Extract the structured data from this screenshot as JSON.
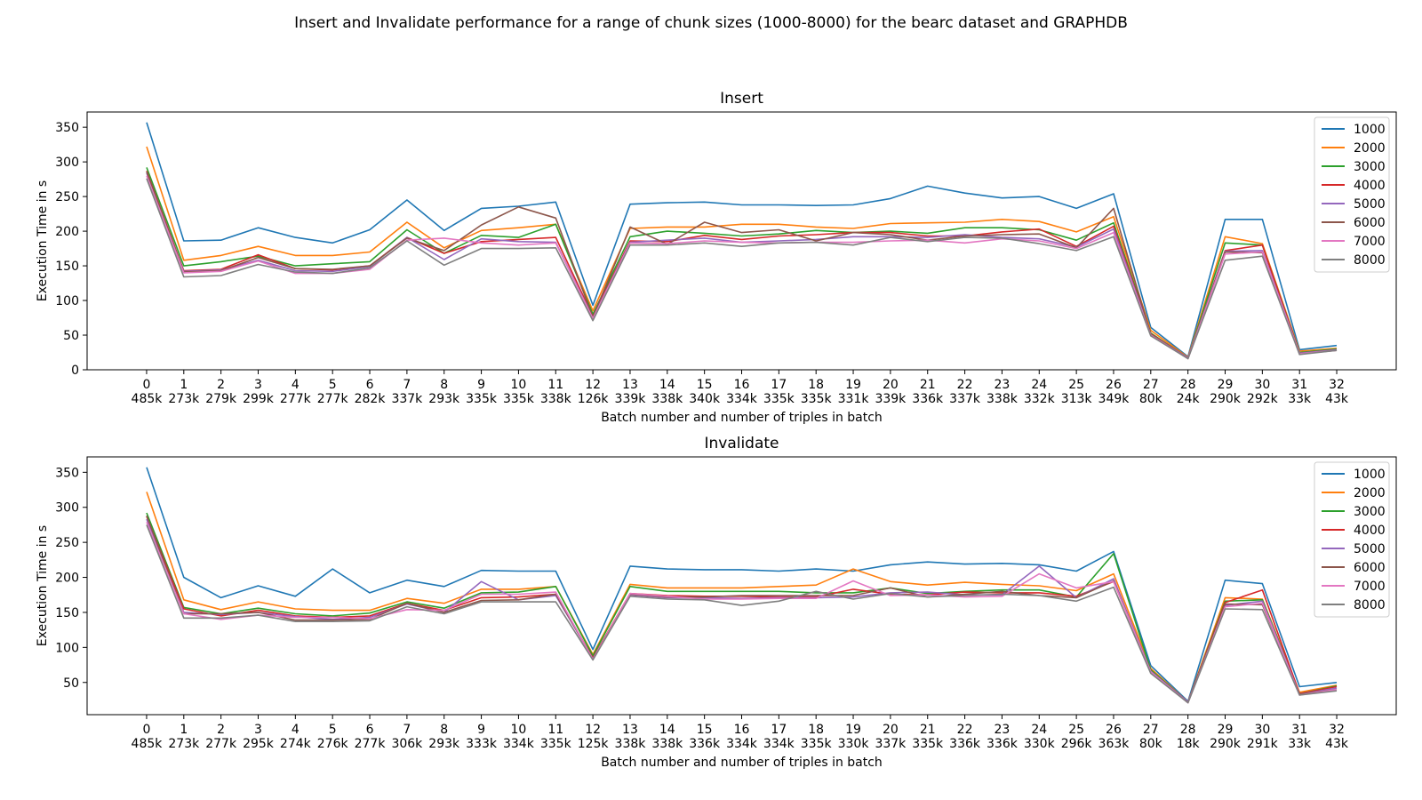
{
  "figure": {
    "suptitle": "Insert and Invalidate performance for a range of chunk sizes (1000-8000) for the bearc dataset and GRAPHDB"
  },
  "chart_data": [
    {
      "type": "line",
      "title": "Insert",
      "xlabel": "Batch number and number of triples in batch",
      "ylabel": "Execution Time in s",
      "ylim": [
        0,
        372
      ],
      "yticks": [
        0,
        50,
        100,
        150,
        200,
        250,
        300,
        350
      ],
      "legend": "top-right",
      "grid": false,
      "x": [
        0,
        1,
        2,
        3,
        4,
        5,
        6,
        7,
        8,
        9,
        10,
        11,
        12,
        13,
        14,
        15,
        16,
        17,
        18,
        19,
        20,
        21,
        22,
        23,
        24,
        25,
        26,
        27,
        28,
        29,
        30,
        31,
        32
      ],
      "x_sublabels": [
        "485k",
        "273k",
        "279k",
        "299k",
        "277k",
        "277k",
        "282k",
        "337k",
        "293k",
        "335k",
        "335k",
        "338k",
        "126k",
        "339k",
        "338k",
        "340k",
        "334k",
        "335k",
        "335k",
        "331k",
        "339k",
        "336k",
        "337k",
        "338k",
        "332k",
        "313k",
        "349k",
        "80k",
        "24k",
        "290k",
        "292k",
        "33k",
        "43k"
      ],
      "series": [
        {
          "name": "1000",
          "color": "#1f77b4",
          "values": [
            357,
            186,
            187,
            205,
            191,
            183,
            202,
            245,
            201,
            233,
            236,
            242,
            93,
            239,
            241,
            242,
            238,
            238,
            237,
            238,
            247,
            265,
            255,
            248,
            250,
            233,
            254,
            61,
            19,
            217,
            217,
            29,
            35
          ]
        },
        {
          "name": "2000",
          "color": "#ff7f0e",
          "values": [
            322,
            158,
            165,
            178,
            165,
            165,
            170,
            213,
            176,
            201,
            205,
            210,
            85,
            204,
            206,
            206,
            210,
            210,
            206,
            204,
            211,
            212,
            213,
            217,
            214,
            199,
            221,
            57,
            18,
            192,
            182,
            27,
            31
          ]
        },
        {
          "name": "3000",
          "color": "#2ca02c",
          "values": [
            292,
            150,
            156,
            164,
            150,
            153,
            156,
            202,
            168,
            194,
            191,
            210,
            80,
            192,
            200,
            197,
            193,
            196,
            201,
            198,
            200,
            197,
            205,
            205,
            202,
            187,
            212,
            53,
            17,
            183,
            180,
            25,
            30
          ]
        },
        {
          "name": "4000",
          "color": "#d62728",
          "values": [
            287,
            143,
            145,
            166,
            146,
            144,
            150,
            191,
            168,
            185,
            188,
            191,
            77,
            186,
            185,
            194,
            188,
            193,
            195,
            198,
            198,
            193,
            193,
            199,
            203,
            178,
            207,
            52,
            17,
            172,
            180,
            24,
            29
          ]
        },
        {
          "name": "5000",
          "color": "#9467bd",
          "values": [
            284,
            142,
            144,
            158,
            143,
            142,
            149,
            191,
            159,
            189,
            185,
            184,
            75,
            184,
            187,
            190,
            184,
            186,
            188,
            192,
            192,
            191,
            195,
            191,
            189,
            177,
            203,
            51,
            17,
            171,
            172,
            24,
            29
          ]
        },
        {
          "name": "6000",
          "color": "#8c564b",
          "values": [
            286,
            141,
            143,
            162,
            146,
            145,
            150,
            190,
            172,
            209,
            235,
            219,
            76,
            206,
            181,
            213,
            198,
            202,
            186,
            198,
            195,
            187,
            193,
            195,
            196,
            176,
            233,
            51,
            16,
            170,
            169,
            23,
            28
          ]
        },
        {
          "name": "7000",
          "color": "#e377c2",
          "values": [
            280,
            140,
            142,
            157,
            139,
            139,
            145,
            187,
            190,
            183,
            180,
            183,
            74,
            183,
            182,
            186,
            184,
            183,
            184,
            184,
            186,
            187,
            183,
            189,
            186,
            175,
            198,
            50,
            16,
            167,
            170,
            23,
            28
          ]
        },
        {
          "name": "8000",
          "color": "#7f7f7f",
          "values": [
            276,
            134,
            136,
            152,
            141,
            139,
            147,
            186,
            151,
            175,
            175,
            176,
            71,
            180,
            180,
            183,
            178,
            183,
            184,
            180,
            191,
            185,
            191,
            190,
            182,
            172,
            192,
            49,
            16,
            158,
            164,
            22,
            28
          ]
        }
      ]
    },
    {
      "type": "line",
      "title": "Invalidate",
      "xlabel": "Batch number and number of triples in batch",
      "ylabel": "Execution Time in s",
      "ylim": [
        4,
        372
      ],
      "yticks": [
        50,
        100,
        150,
        200,
        250,
        300,
        350
      ],
      "legend": "top-right",
      "grid": false,
      "x": [
        0,
        1,
        2,
        3,
        4,
        5,
        6,
        7,
        8,
        9,
        10,
        11,
        12,
        13,
        14,
        15,
        16,
        17,
        18,
        19,
        20,
        21,
        22,
        23,
        24,
        25,
        26,
        27,
        28,
        29,
        30,
        31,
        32
      ],
      "x_sublabels": [
        "485k",
        "273k",
        "277k",
        "295k",
        "274k",
        "276k",
        "277k",
        "306k",
        "293k",
        "333k",
        "334k",
        "335k",
        "125k",
        "338k",
        "338k",
        "336k",
        "334k",
        "334k",
        "335k",
        "330k",
        "337k",
        "335k",
        "336k",
        "336k",
        "330k",
        "296k",
        "363k",
        "80k",
        "18k",
        "290k",
        "291k",
        "33k",
        "43k"
      ],
      "series": [
        {
          "name": "1000",
          "color": "#1f77b4",
          "values": [
            357,
            200,
            171,
            188,
            173,
            212,
            178,
            196,
            187,
            210,
            209,
            209,
            97,
            216,
            212,
            211,
            211,
            209,
            212,
            209,
            218,
            222,
            219,
            220,
            218,
            209,
            237,
            74,
            23,
            196,
            191,
            44,
            50
          ]
        },
        {
          "name": "2000",
          "color": "#ff7f0e",
          "values": [
            322,
            168,
            154,
            165,
            155,
            153,
            153,
            170,
            163,
            183,
            183,
            187,
            90,
            190,
            185,
            185,
            185,
            187,
            189,
            212,
            194,
            189,
            193,
            190,
            188,
            181,
            205,
            70,
            22,
            171,
            169,
            36,
            46
          ]
        },
        {
          "name": "3000",
          "color": "#2ca02c",
          "values": [
            292,
            157,
            148,
            156,
            148,
            145,
            149,
            165,
            156,
            178,
            179,
            187,
            88,
            187,
            180,
            180,
            180,
            180,
            178,
            178,
            185,
            177,
            180,
            182,
            182,
            172,
            234,
            68,
            22,
            166,
            168,
            34,
            45
          ]
        },
        {
          "name": "4000",
          "color": "#d62728",
          "values": [
            287,
            155,
            145,
            153,
            145,
            143,
            145,
            163,
            153,
            171,
            172,
            176,
            85,
            177,
            174,
            173,
            173,
            172,
            172,
            183,
            176,
            175,
            179,
            178,
            178,
            173,
            194,
            66,
            22,
            164,
            182,
            34,
            44
          ]
        },
        {
          "name": "5000",
          "color": "#9467bd",
          "values": [
            283,
            150,
            147,
            150,
            144,
            140,
            143,
            162,
            150,
            194,
            168,
            174,
            84,
            175,
            171,
            171,
            170,
            171,
            171,
            172,
            178,
            179,
            175,
            175,
            216,
            171,
            198,
            66,
            22,
            160,
            166,
            33,
            42
          ]
        },
        {
          "name": "6000",
          "color": "#8c564b",
          "values": [
            288,
            148,
            148,
            150,
            139,
            139,
            140,
            163,
            150,
            167,
            168,
            176,
            84,
            176,
            172,
            172,
            174,
            174,
            174,
            174,
            185,
            172,
            176,
            180,
            174,
            171,
            195,
            65,
            21,
            162,
            161,
            33,
            40
          ]
        },
        {
          "name": "7000",
          "color": "#e377c2",
          "values": [
            279,
            148,
            140,
            146,
            143,
            143,
            141,
            154,
            153,
            176,
            176,
            179,
            83,
            177,
            173,
            169,
            169,
            170,
            170,
            195,
            174,
            175,
            172,
            173,
            205,
            185,
            194,
            65,
            21,
            158,
            163,
            32,
            40
          ]
        },
        {
          "name": "8000",
          "color": "#7f7f7f",
          "values": [
            275,
            142,
            142,
            146,
            137,
            137,
            138,
            158,
            148,
            165,
            165,
            165,
            82,
            173,
            169,
            168,
            160,
            166,
            180,
            169,
            177,
            172,
            174,
            176,
            174,
            166,
            186,
            63,
            21,
            155,
            154,
            32,
            38
          ]
        }
      ]
    }
  ]
}
